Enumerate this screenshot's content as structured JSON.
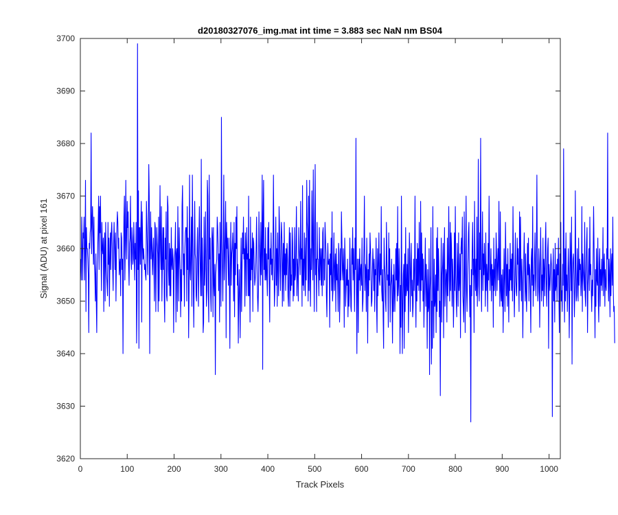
{
  "chart_data": {
    "type": "line",
    "title": "d20180327076_img.mat int time = 3.883 sec  NaN nm BS04",
    "xlabel": "Track Pixels",
    "ylabel": "Signal (ADU) at pixel 161",
    "xlim": [
      0,
      1024
    ],
    "ylim": [
      3620,
      3700
    ],
    "xticks": [
      0,
      100,
      200,
      300,
      400,
      500,
      600,
      700,
      800,
      900,
      1000
    ],
    "yticks": [
      3620,
      3630,
      3640,
      3650,
      3660,
      3670,
      3680,
      3690,
      3700
    ],
    "grid": false,
    "box": true,
    "series": [
      {
        "color": "#0000ff",
        "x_start": 1,
        "x_step": 1,
        "values": [
          3658,
          3654,
          3666,
          3660,
          3654,
          3663,
          3662,
          3666,
          3654,
          3660,
          3673,
          3648,
          3664,
          3660,
          3660,
          3658,
          3655,
          3644,
          3661,
          3660,
          3663,
          3664,
          3682,
          3659,
          3665,
          3668,
          3663,
          3657,
          3666,
          3657,
          3655,
          3650,
          3659,
          3650,
          3644,
          3656,
          3660,
          3664,
          3670,
          3656,
          3668,
          3663,
          3670,
          3660,
          3652,
          3665,
          3660,
          3659,
          3662,
          3648,
          3660,
          3663,
          3650,
          3665,
          3657,
          3655,
          3653,
          3651,
          3665,
          3657,
          3662,
          3649,
          3658,
          3663,
          3656,
          3663,
          3665,
          3661,
          3656,
          3652,
          3661,
          3665,
          3660,
          3656,
          3663,
          3650,
          3658,
          3664,
          3667,
          3665,
          3660,
          3662,
          3655,
          3657,
          3658,
          3651,
          3663,
          3662,
          3656,
          3658,
          3640,
          3657,
          3666,
          3670,
          3654,
          3660,
          3673,
          3662,
          3658,
          3669,
          3664,
          3667,
          3657,
          3653,
          3661,
          3662,
          3670,
          3658,
          3656,
          3664,
          3662,
          3657,
          3658,
          3665,
          3660,
          3654,
          3661,
          3658,
          3665,
          3642,
          3650,
          3699,
          3656,
          3671,
          3641,
          3664,
          3664,
          3657,
          3664,
          3669,
          3646,
          3667,
          3661,
          3658,
          3660,
          3658,
          3656,
          3657,
          3655,
          3654,
          3669,
          3665,
          3660,
          3655,
          3662,
          3676,
          3670,
          3640,
          3660,
          3667,
          3658,
          3664,
          3660,
          3655,
          3659,
          3662,
          3656,
          3650,
          3665,
          3664,
          3648,
          3658,
          3664,
          3661,
          3659,
          3648,
          3666,
          3650,
          3661,
          3672,
          3660,
          3656,
          3668,
          3650,
          3657,
          3664,
          3656,
          3664,
          3651,
          3646,
          3662,
          3658,
          3667,
          3651,
          3650,
          3670,
          3668,
          3656,
          3653,
          3661,
          3651,
          3660,
          3651,
          3664,
          3657,
          3656,
          3660,
          3658,
          3644,
          3656,
          3658,
          3660,
          3665,
          3646,
          3659,
          3660,
          3648,
          3668,
          3658,
          3650,
          3664,
          3659,
          3656,
          3647,
          3656,
          3650,
          3668,
          3672,
          3661,
          3655,
          3659,
          3649,
          3660,
          3663,
          3664,
          3664,
          3650,
          3668,
          3656,
          3662,
          3643,
          3652,
          3674,
          3656,
          3654,
          3660,
          3666,
          3649,
          3674,
          3663,
          3653,
          3645,
          3656,
          3669,
          3659,
          3658,
          3651,
          3650,
          3660,
          3664,
          3655,
          3649,
          3662,
          3668,
          3660,
          3655,
          3651,
          3677,
          3651,
          3662,
          3657,
          3644,
          3646,
          3666,
          3653,
          3656,
          3667,
          3659,
          3649,
          3652,
          3673,
          3670,
          3652,
          3646,
          3674,
          3658,
          3662,
          3651,
          3648,
          3658,
          3664,
          3662,
          3647,
          3664,
          3653,
          3651,
          3657,
          3636,
          3655,
          3657,
          3658,
          3666,
          3664,
          3660,
          3652,
          3659,
          3646,
          3665,
          3658,
          3649,
          3685,
          3662,
          3657,
          3650,
          3660,
          3674,
          3654,
          3658,
          3663,
          3669,
          3643,
          3665,
          3660,
          3662,
          3658,
          3653,
          3662,
          3654,
          3641,
          3657,
          3665,
          3653,
          3659,
          3660,
          3663,
          3658,
          3650,
          3665,
          3647,
          3661,
          3655,
          3666,
          3660,
          3668,
          3653,
          3657,
          3642,
          3650,
          3656,
          3651,
          3643,
          3656,
          3662,
          3648,
          3656,
          3663,
          3659,
          3666,
          3658,
          3660,
          3649,
          3663,
          3660,
          3651,
          3664,
          3658,
          3659,
          3651,
          3670,
          3651,
          3658,
          3646,
          3666,
          3654,
          3660,
          3656,
          3663,
          3648,
          3662,
          3661,
          3657,
          3653,
          3654,
          3656,
          3660,
          3666,
          3657,
          3651,
          3648,
          3652,
          3667,
          3661,
          3658,
          3653,
          3665,
          3655,
          3660,
          3674,
          3637,
          3666,
          3673,
          3656,
          3660,
          3654,
          3664,
          3654,
          3659,
          3655,
          3651,
          3664,
          3658,
          3665,
          3653,
          3646,
          3660,
          3657,
          3663,
          3655,
          3658,
          3654,
          3661,
          3674,
          3660,
          3649,
          3652,
          3658,
          3666,
          3653,
          3660,
          3649,
          3663,
          3657,
          3651,
          3668,
          3664,
          3656,
          3652,
          3661,
          3665,
          3662,
          3649,
          3657,
          3661,
          3650,
          3665,
          3655,
          3659,
          3652,
          3660,
          3655,
          3661,
          3658,
          3651,
          3649,
          3659,
          3664,
          3649,
          3663,
          3652,
          3655,
          3653,
          3664,
          3661,
          3650,
          3658,
          3651,
          3664,
          3654,
          3655,
          3661,
          3668,
          3651,
          3658,
          3656,
          3650,
          3664,
          3660,
          3658,
          3655,
          3669,
          3658,
          3660,
          3649,
          3672,
          3653,
          3658,
          3652,
          3663,
          3658,
          3651,
          3662,
          3654,
          3673,
          3665,
          3663,
          3650,
          3670,
          3652,
          3673,
          3656,
          3649,
          3660,
          3656,
          3671,
          3662,
          3654,
          3675,
          3660,
          3648,
          3664,
          3676,
          3655,
          3658,
          3648,
          3665,
          3658,
          3658,
          3655,
          3651,
          3664,
          3654,
          3660,
          3658,
          3653,
          3660,
          3651,
          3663,
          3664,
          3653,
          3658,
          3654,
          3665,
          3662,
          3659,
          3651,
          3647,
          3656,
          3661,
          3657,
          3657,
          3658,
          3645,
          3659,
          3655,
          3662,
          3652,
          3667,
          3650,
          3652,
          3657,
          3663,
          3652,
          3656,
          3659,
          3648,
          3660,
          3654,
          3657,
          3653,
          3648,
          3661,
          3659,
          3646,
          3651,
          3660,
          3654,
          3667,
          3662,
          3656,
          3654,
          3660,
          3656,
          3645,
          3662,
          3658,
          3649,
          3652,
          3656,
          3653,
          3658,
          3647,
          3654,
          3649,
          3652,
          3662,
          3656,
          3649,
          3648,
          3660,
          3657,
          3664,
          3654,
          3660,
          3655,
          3648,
          3662,
          3656,
          3681,
          3653,
          3640,
          3658,
          3655,
          3644,
          3658,
          3654,
          3660,
          3652,
          3656,
          3657,
          3653,
          3662,
          3648,
          3650,
          3655,
          3660,
          3670,
          3652,
          3657,
          3656,
          3648,
          3662,
          3656,
          3642,
          3656,
          3651,
          3659,
          3654,
          3663,
          3660,
          3656,
          3649,
          3650,
          3655,
          3660,
          3657,
          3652,
          3658,
          3648,
          3656,
          3655,
          3662,
          3649,
          3644,
          3660,
          3651,
          3657,
          3663,
          3654,
          3653,
          3659,
          3655,
          3668,
          3652,
          3650,
          3656,
          3647,
          3641,
          3662,
          3657,
          3655,
          3650,
          3648,
          3665,
          3658,
          3654,
          3655,
          3645,
          3663,
          3653,
          3660,
          3646,
          3653,
          3654,
          3658,
          3650,
          3642,
          3655,
          3648,
          3657,
          3653,
          3648,
          3653,
          3660,
          3654,
          3661,
          3650,
          3668,
          3651,
          3653,
          3660,
          3655,
          3640,
          3653,
          3645,
          3670,
          3654,
          3640,
          3650,
          3655,
          3657,
          3641,
          3659,
          3648,
          3664,
          3651,
          3652,
          3657,
          3652,
          3660,
          3644,
          3653,
          3663,
          3658,
          3648,
          3656,
          3661,
          3651,
          3654,
          3647,
          3649,
          3658,
          3652,
          3656,
          3670,
          3652,
          3645,
          3658,
          3650,
          3661,
          3653,
          3660,
          3652,
          3665,
          3655,
          3648,
          3669,
          3652,
          3663,
          3654,
          3659,
          3650,
          3658,
          3645,
          3651,
          3655,
          3662,
          3649,
          3657,
          3653,
          3641,
          3656,
          3648,
          3649,
          3660,
          3636,
          3652,
          3655,
          3664,
          3638,
          3650,
          3641,
          3668,
          3652,
          3643,
          3658,
          3649,
          3650,
          3655,
          3644,
          3662,
          3648,
          3664,
          3652,
          3660,
          3656,
          3647,
          3650,
          3632,
          3654,
          3662,
          3646,
          3655,
          3657,
          3661,
          3643,
          3657,
          3664,
          3649,
          3652,
          3656,
          3655,
          3646,
          3662,
          3651,
          3657,
          3668,
          3654,
          3650,
          3665,
          3652,
          3663,
          3660,
          3649,
          3658,
          3654,
          3645,
          3651,
          3663,
          3652,
          3668,
          3655,
          3650,
          3647,
          3661,
          3656,
          3649,
          3663,
          3652,
          3654,
          3659,
          3643,
          3660,
          3662,
          3659,
          3666,
          3651,
          3649,
          3646,
          3667,
          3656,
          3644,
          3660,
          3670,
          3652,
          3648,
          3655,
          3658,
          3663,
          3665,
          3653,
          3647,
          3653,
          3627,
          3656,
          3651,
          3660,
          3665,
          3655,
          3658,
          3644,
          3669,
          3656,
          3652,
          3658,
          3651,
          3666,
          3649,
          3657,
          3677,
          3653,
          3650,
          3663,
          3656,
          3681,
          3656,
          3648,
          3658,
          3667,
          3652,
          3659,
          3655,
          3661,
          3656,
          3649,
          3663,
          3652,
          3657,
          3655,
          3648,
          3661,
          3654,
          3670,
          3658,
          3652,
          3656,
          3660,
          3650,
          3657,
          3653,
          3656,
          3645,
          3662,
          3652,
          3655,
          3658,
          3651,
          3663,
          3659,
          3652,
          3657,
          3660,
          3654,
          3669,
          3657,
          3649,
          3667,
          3652,
          3650,
          3655,
          3649,
          3656,
          3644,
          3652,
          3660,
          3654,
          3648,
          3665,
          3658,
          3651,
          3657,
          3649,
          3660,
          3653,
          3646,
          3656,
          3652,
          3661,
          3654,
          3658,
          3652,
          3659,
          3650,
          3668,
          3658,
          3653,
          3647,
          3654,
          3663,
          3655,
          3652,
          3651,
          3662,
          3657,
          3660,
          3654,
          3648,
          3667,
          3652,
          3666,
          3656,
          3650,
          3658,
          3654,
          3643,
          3652,
          3658,
          3663,
          3656,
          3650,
          3659,
          3652,
          3648,
          3654,
          3661,
          3655,
          3662,
          3650,
          3657,
          3656,
          3652,
          3644,
          3658,
          3660,
          3653,
          3668,
          3649,
          3655,
          3652,
          3658,
          3663,
          3654,
          3651,
          3660,
          3674,
          3656,
          3650,
          3652,
          3660,
          3657,
          3645,
          3653,
          3664,
          3657,
          3650,
          3655,
          3652,
          3662,
          3649,
          3658,
          3656,
          3651,
          3661,
          3665,
          3654,
          3649,
          3655,
          3660,
          3662,
          3641,
          3657,
          3654,
          3652,
          3656,
          3659,
          3657,
          3652,
          3628,
          3654,
          3660,
          3650,
          3656,
          3646,
          3661,
          3652,
          3653,
          3657,
          3650,
          3658,
          3655,
          3662,
          3651,
          3644,
          3659,
          3653,
          3665,
          3650,
          3652,
          3648,
          3657,
          3653,
          3679,
          3656,
          3646,
          3660,
          3650,
          3663,
          3652,
          3655,
          3648,
          3654,
          3660,
          3656,
          3643,
          3651,
          3663,
          3658,
          3652,
          3666,
          3638,
          3655,
          3658,
          3659,
          3654,
          3647,
          3652,
          3671,
          3656,
          3650,
          3651,
          3660,
          3654,
          3650,
          3662,
          3653,
          3658,
          3656,
          3657,
          3651,
          3654,
          3668,
          3648,
          3659,
          3656,
          3654,
          3652,
          3665,
          3651,
          3649,
          3656,
          3661,
          3664,
          3644,
          3653,
          3656,
          3660,
          3652,
          3666,
          3655,
          3657,
          3652,
          3648,
          3654,
          3651,
          3658,
          3668,
          3660,
          3652,
          3643,
          3656,
          3649,
          3660,
          3654,
          3653,
          3662,
          3650,
          3646,
          3657,
          3660,
          3649,
          3656,
          3653,
          3658,
          3652,
          3655,
          3664,
          3651,
          3657,
          3659,
          3649,
          3656,
          3653,
          3652,
          3660,
          3658,
          3682,
          3654,
          3650,
          3658,
          3655,
          3647,
          3660,
          3651,
          3657,
          3659,
          3653,
          3666,
          3652,
          3648,
          3649,
          3642
        ]
      }
    ]
  }
}
